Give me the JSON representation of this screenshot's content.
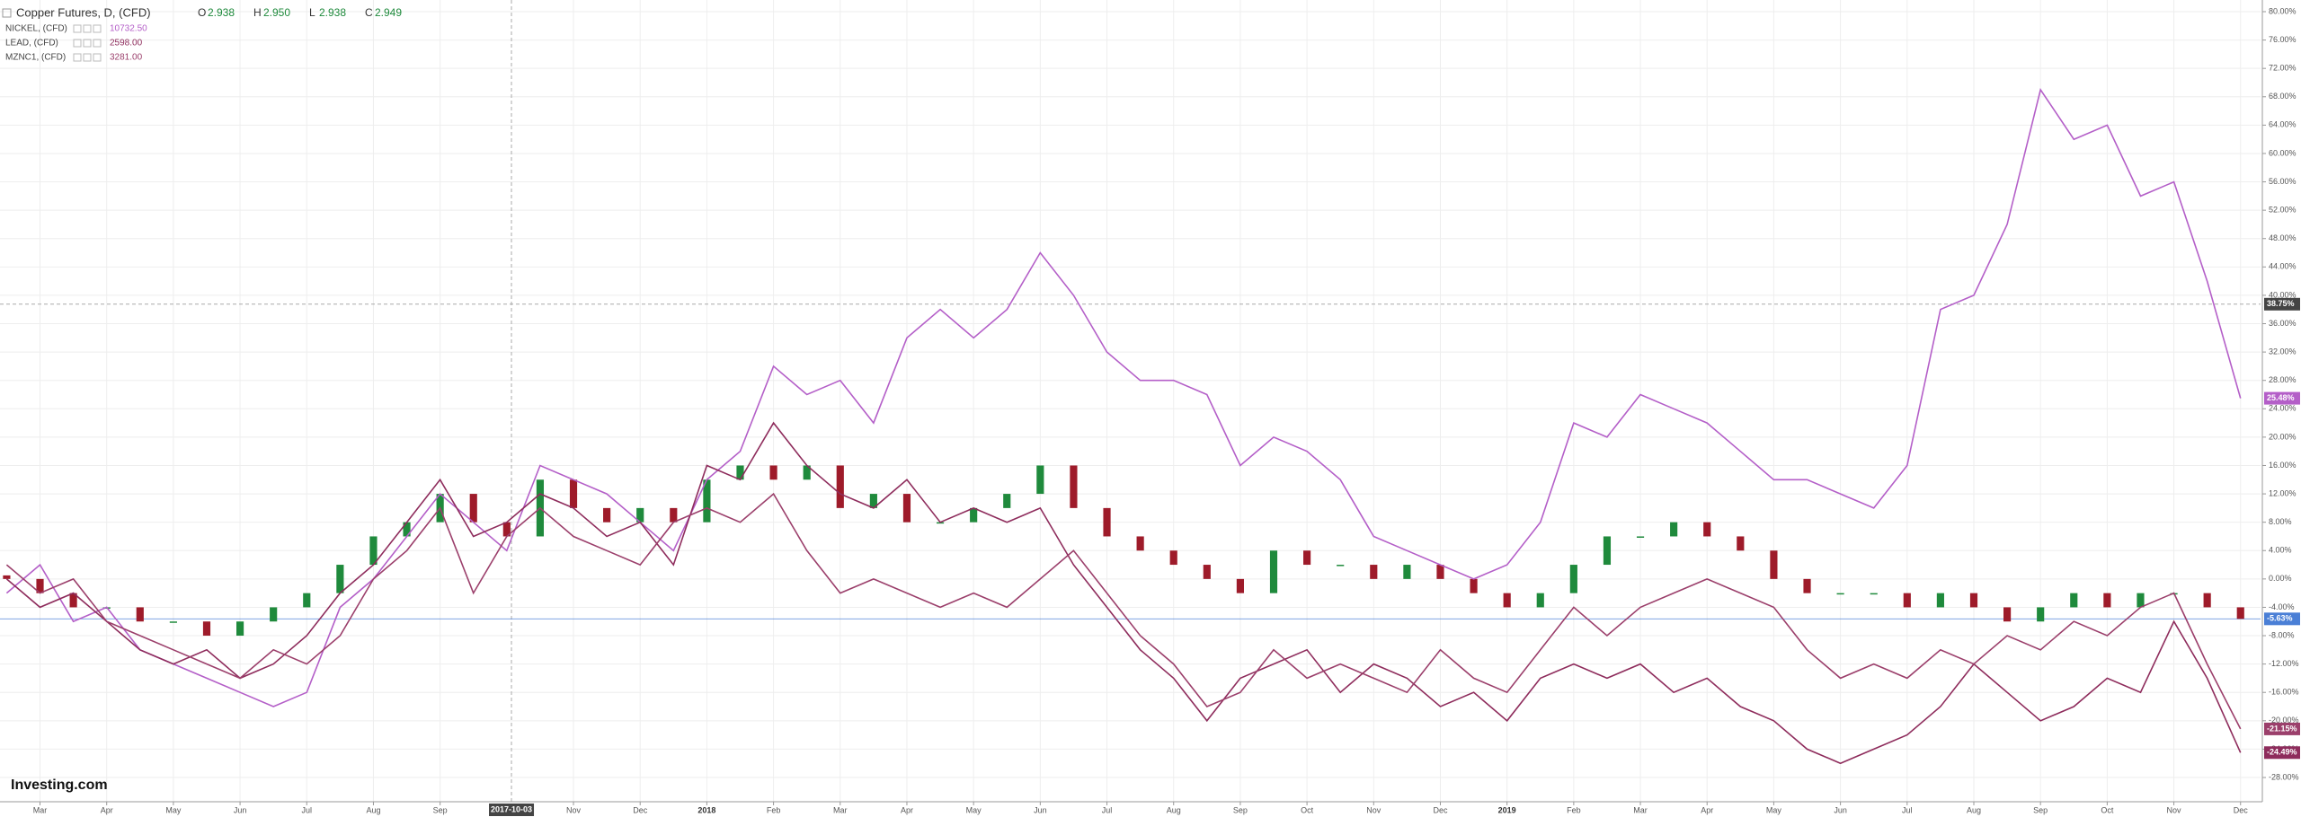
{
  "chart_data": {
    "type": "line",
    "ohlc": [
      {
        "label": "O",
        "value": "2.938"
      },
      {
        "label": "H",
        "value": "2.950"
      },
      {
        "label": "L",
        "value": "2.938"
      },
      {
        "label": "C",
        "value": "2.949"
      }
    ],
    "logo": "Investing.com",
    "grid": true,
    "xlim": [
      0.4,
      34.3
    ],
    "ylim": [
      -28,
      80
    ],
    "xticks": [
      {
        "value": 1,
        "label": "Mar"
      },
      {
        "value": 2,
        "label": "Apr"
      },
      {
        "value": 3,
        "label": "May"
      },
      {
        "value": 4,
        "label": "Jun"
      },
      {
        "value": 5,
        "label": "Jul"
      },
      {
        "value": 6,
        "label": "Aug"
      },
      {
        "value": 7,
        "label": "Sep"
      },
      {
        "value": 9,
        "label": "Nov"
      },
      {
        "value": 10,
        "label": "Dec"
      },
      {
        "value": 11,
        "label": "2018"
      },
      {
        "value": 12,
        "label": "Feb"
      },
      {
        "value": 13,
        "label": "Mar"
      },
      {
        "value": 14,
        "label": "Apr"
      },
      {
        "value": 15,
        "label": "May"
      },
      {
        "value": 16,
        "label": "Jun"
      },
      {
        "value": 17,
        "label": "Jul"
      },
      {
        "value": 18,
        "label": "Aug"
      },
      {
        "value": 19,
        "label": "Sep"
      },
      {
        "value": 20,
        "label": "Oct"
      },
      {
        "value": 21,
        "label": "Nov"
      },
      {
        "value": 22,
        "label": "Dec"
      },
      {
        "value": 23,
        "label": "2019"
      },
      {
        "value": 24,
        "label": "Feb"
      },
      {
        "value": 25,
        "label": "Mar"
      },
      {
        "value": 26,
        "label": "Apr"
      },
      {
        "value": 27,
        "label": "May"
      },
      {
        "value": 28,
        "label": "Jun"
      },
      {
        "value": 29,
        "label": "Jul"
      },
      {
        "value": 30,
        "label": "Aug"
      },
      {
        "value": 31,
        "label": "Sep"
      },
      {
        "value": 32,
        "label": "Oct"
      },
      {
        "value": 33,
        "label": "Nov"
      },
      {
        "value": 34,
        "label": "Dec"
      }
    ],
    "yticks": [
      {
        "value": 80,
        "label": "80.00%"
      },
      {
        "value": 76,
        "label": "76.00%"
      },
      {
        "value": 72,
        "label": "72.00%"
      },
      {
        "value": 68,
        "label": "68.00%"
      },
      {
        "value": 64,
        "label": "64.00%"
      },
      {
        "value": 60,
        "label": "60.00%"
      },
      {
        "value": 56,
        "label": "56.00%"
      },
      {
        "value": 52,
        "label": "52.00%"
      },
      {
        "value": 48,
        "label": "48.00%"
      },
      {
        "value": 44,
        "label": "44.00%"
      },
      {
        "value": 40,
        "label": "40.00%"
      },
      {
        "value": 36,
        "label": "36.00%"
      },
      {
        "value": 32,
        "label": "32.00%"
      },
      {
        "value": 28,
        "label": "28.00%"
      },
      {
        "value": 24,
        "label": "24.00%"
      },
      {
        "value": 20,
        "label": "20.00%"
      },
      {
        "value": 16,
        "label": "16.00%"
      },
      {
        "value": 12,
        "label": "12.00%"
      },
      {
        "value": 8,
        "label": "8.00%"
      },
      {
        "value": 4,
        "label": "4.00%"
      },
      {
        "value": 0,
        "label": "0.00%"
      },
      {
        "value": -4,
        "label": "-4.00%"
      },
      {
        "value": -8,
        "label": "-8.00%"
      },
      {
        "value": -12,
        "label": "-12.00%"
      },
      {
        "value": -16,
        "label": "-16.00%"
      },
      {
        "value": -20,
        "label": "-20.00%"
      },
      {
        "value": -24,
        "label": "-24.00%"
      },
      {
        "value": -28,
        "label": "-28.00%"
      }
    ],
    "crosshair": {
      "x": {
        "value": 8.07,
        "label": "2017-10-03"
      },
      "y": {
        "value": 38.75,
        "label": "38.75%"
      }
    },
    "x": [
      0.5,
      1,
      1.5,
      2,
      2.5,
      3,
      3.5,
      4,
      4.5,
      5,
      5.5,
      6,
      6.5,
      7,
      7.5,
      8,
      8.5,
      9,
      9.5,
      10,
      10.5,
      11,
      11.5,
      12,
      12.5,
      13,
      13.5,
      14,
      14.5,
      15,
      15.5,
      16,
      16.5,
      17,
      17.5,
      18,
      18.5,
      19,
      19.5,
      20,
      20.5,
      21,
      21.5,
      22,
      22.5,
      23,
      23.5,
      24,
      24.5,
      25,
      25.5,
      26,
      26.5,
      27,
      27.5,
      28,
      28.5,
      29,
      29.5,
      30,
      30.5,
      31,
      31.5,
      32,
      32.5,
      33,
      33.5,
      34
    ],
    "series": [
      {
        "name": "Copper Futures, D, (CFD)",
        "type": "candlestick",
        "color": "#4a7fd6",
        "color_up": "#1f8a3c",
        "color_down": "#9e1b2a",
        "last_value_label": "-5.63%",
        "open": [
          0.5,
          0,
          -2,
          -4,
          -4,
          -6,
          -6,
          -8,
          -6,
          -4,
          -2,
          2,
          6,
          8,
          12,
          8,
          6,
          14,
          10,
          8,
          10,
          8,
          14,
          16,
          14,
          16,
          10,
          12,
          8,
          8,
          10,
          12,
          16,
          10,
          6,
          4,
          2,
          0,
          -2,
          4,
          2,
          2,
          0,
          2,
          0,
          -2,
          -4,
          -2,
          2,
          6,
          6,
          8,
          6,
          4,
          0,
          -2,
          -2,
          -2,
          -4,
          -2,
          -4,
          -6,
          -4,
          -2,
          -4,
          -2,
          -2,
          -4
        ],
        "values": [
          0,
          -2,
          -4,
          -4,
          -6,
          -6,
          -8,
          -6,
          -4,
          -2,
          2,
          6,
          8,
          12,
          8,
          6,
          14,
          10,
          8,
          10,
          8,
          14,
          16,
          14,
          16,
          10,
          12,
          8,
          8,
          10,
          12,
          16,
          10,
          6,
          4,
          2,
          0,
          -2,
          4,
          2,
          2,
          0,
          2,
          0,
          -2,
          -4,
          -2,
          2,
          6,
          6,
          8,
          6,
          4,
          0,
          -2,
          -2,
          -2,
          -4,
          -2,
          -4,
          -6,
          -4,
          -2,
          -4,
          -2,
          -2,
          -4,
          -5.63
        ]
      },
      {
        "name": "NICKEL, (CFD)",
        "legend_value": "10732.50",
        "color": "#b45fc8",
        "last_value_label": "25.48%",
        "values": [
          -2,
          2,
          -6,
          -4,
          -10,
          -12,
          -14,
          -16,
          -18,
          -16,
          -4,
          0,
          6,
          12,
          8,
          4,
          16,
          14,
          12,
          8,
          4,
          14,
          18,
          30,
          26,
          28,
          22,
          34,
          38,
          34,
          38,
          46,
          40,
          32,
          28,
          28,
          26,
          16,
          20,
          18,
          14,
          6,
          4,
          2,
          0,
          2,
          8,
          22,
          20,
          26,
          24,
          22,
          18,
          14,
          14,
          12,
          10,
          16,
          38,
          40,
          50,
          69,
          62,
          64,
          54,
          56,
          42,
          25.48
        ]
      },
      {
        "name": "LEAD, (CFD)",
        "legend_value": "2598.00",
        "color": "#8e2c5c",
        "last_value_label": "-24.49%",
        "values": [
          0,
          -4,
          -2,
          -6,
          -10,
          -12,
          -10,
          -14,
          -12,
          -8,
          -2,
          2,
          8,
          14,
          6,
          8,
          12,
          10,
          6,
          8,
          2,
          16,
          14,
          22,
          16,
          12,
          10,
          14,
          8,
          10,
          8,
          10,
          2,
          -4,
          -10,
          -14,
          -20,
          -14,
          -12,
          -10,
          -16,
          -12,
          -14,
          -18,
          -16,
          -20,
          -14,
          -12,
          -14,
          -12,
          -16,
          -14,
          -18,
          -20,
          -24,
          -26,
          -24,
          -22,
          -18,
          -12,
          -16,
          -20,
          -18,
          -14,
          -16,
          -6,
          -14,
          -24.49
        ]
      },
      {
        "name": "MZNC1, (CFD)",
        "legend_value": "3281.00",
        "color": "#9b3f6b",
        "last_value_label": "-21.15%",
        "values": [
          2,
          -2,
          0,
          -6,
          -8,
          -10,
          -12,
          -14,
          -10,
          -12,
          -8,
          0,
          4,
          10,
          -2,
          6,
          10,
          6,
          4,
          2,
          8,
          10,
          8,
          12,
          4,
          -2,
          0,
          -2,
          -4,
          -2,
          -4,
          0,
          4,
          -2,
          -8,
          -12,
          -18,
          -16,
          -10,
          -14,
          -12,
          -14,
          -16,
          -10,
          -14,
          -16,
          -10,
          -4,
          -8,
          -4,
          -2,
          0,
          -2,
          -4,
          -10,
          -14,
          -12,
          -14,
          -10,
          -12,
          -8,
          -10,
          -6,
          -8,
          -4,
          -2,
          -12,
          -21.15
        ]
      }
    ]
  }
}
